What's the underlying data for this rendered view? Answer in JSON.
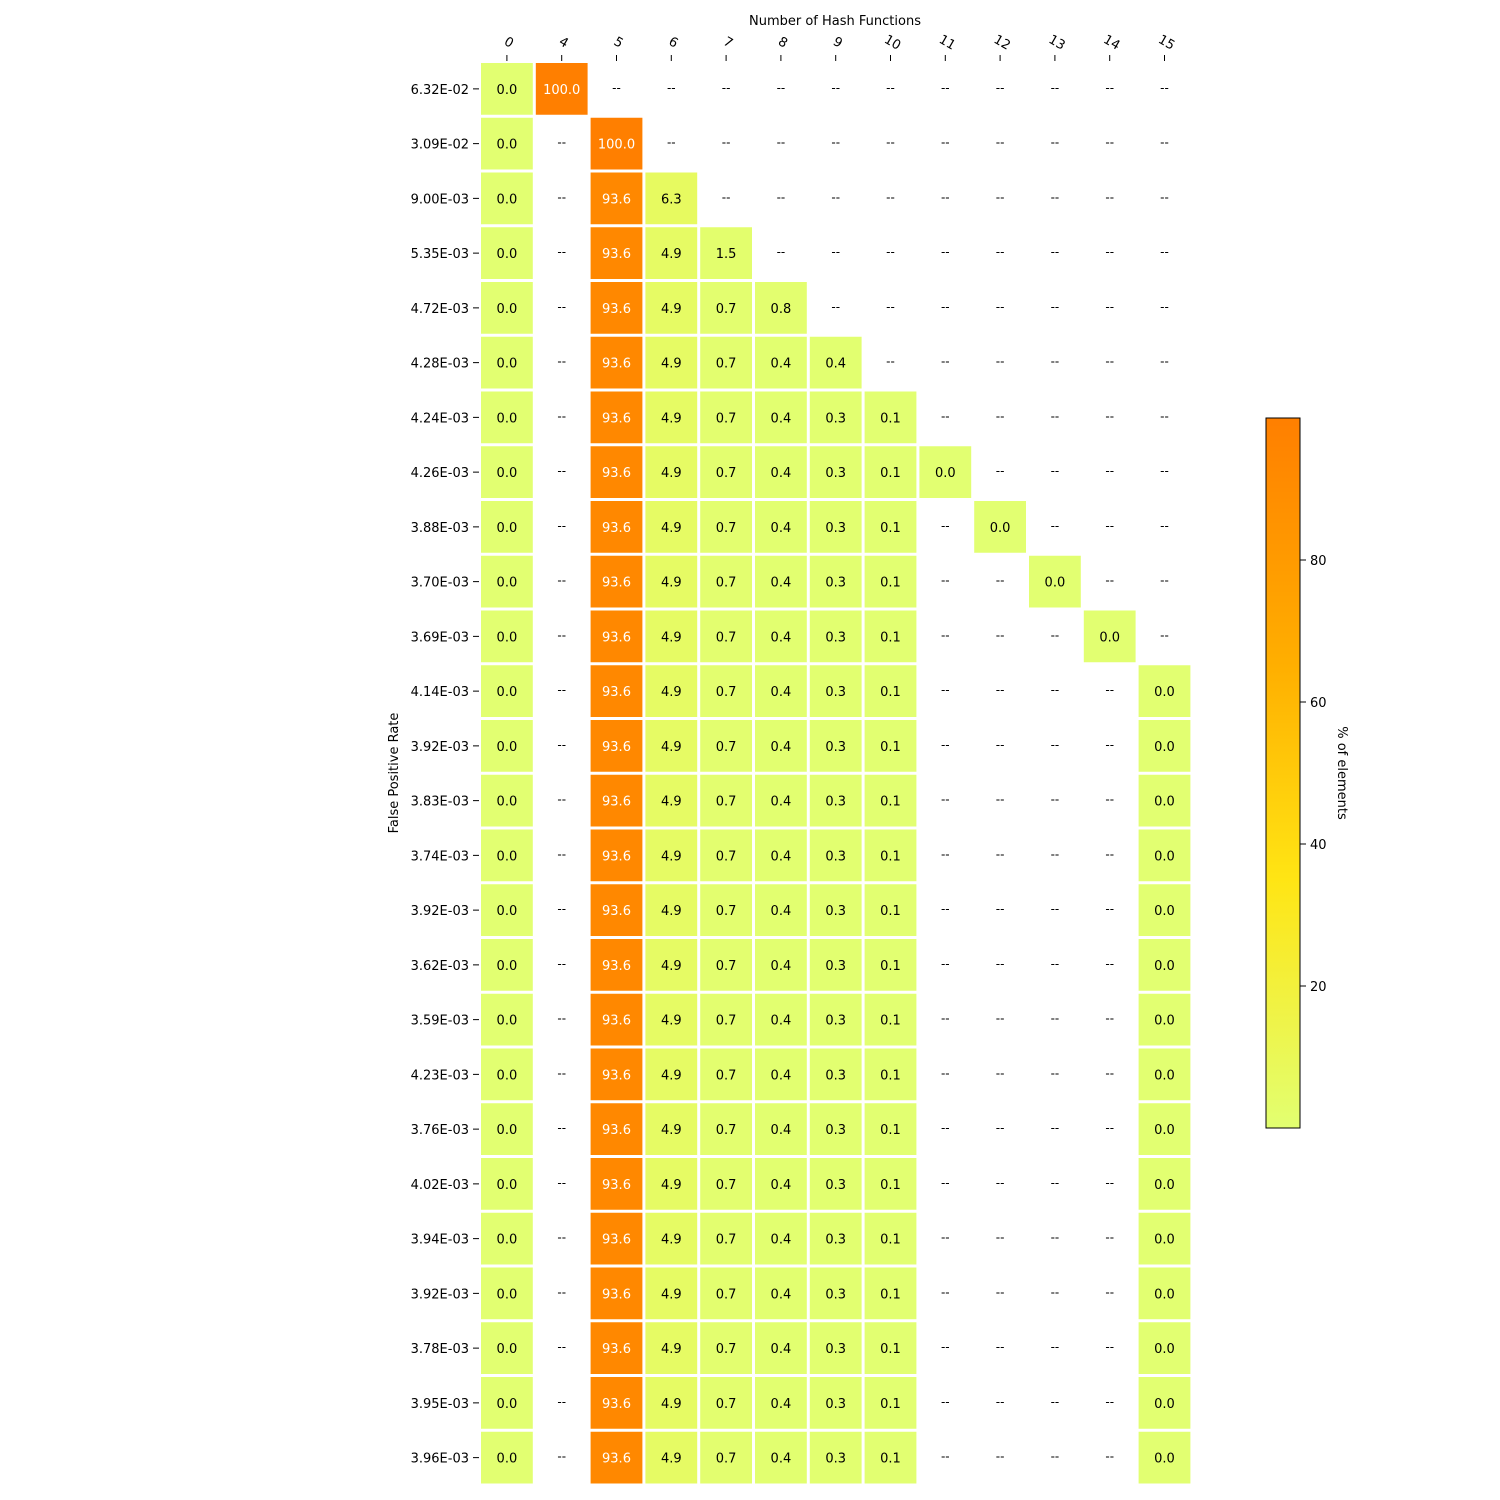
{
  "chart_data": {
    "type": "heatmap",
    "title": "Number of Hash Functions",
    "xlabel": "Number of Hash Functions",
    "ylabel": "False Positive Rate",
    "x_categories": [
      "0",
      "4",
      "5",
      "6",
      "7",
      "8",
      "9",
      "10",
      "11",
      "12",
      "13",
      "14",
      "15"
    ],
    "y_categories": [
      "6.32E-02",
      "3.09E-02",
      "9.00E-03",
      "5.35E-03",
      "4.72E-03",
      "4.28E-03",
      "4.24E-03",
      "4.26E-03",
      "3.88E-03",
      "3.70E-03",
      "3.69E-03",
      "4.14E-03",
      "3.92E-03",
      "3.83E-03",
      "3.74E-03",
      "3.92E-03",
      "3.62E-03",
      "3.59E-03",
      "4.23E-03",
      "3.76E-03",
      "4.02E-03",
      "3.94E-03",
      "3.92E-03",
      "3.78E-03",
      "3.95E-03",
      "3.96E-03"
    ],
    "values": [
      [
        0.0,
        100.0,
        null,
        null,
        null,
        null,
        null,
        null,
        null,
        null,
        null,
        null,
        null
      ],
      [
        0.0,
        null,
        100.0,
        null,
        null,
        null,
        null,
        null,
        null,
        null,
        null,
        null,
        null
      ],
      [
        0.0,
        null,
        93.6,
        6.3,
        null,
        null,
        null,
        null,
        null,
        null,
        null,
        null,
        null
      ],
      [
        0.0,
        null,
        93.6,
        4.9,
        1.5,
        null,
        null,
        null,
        null,
        null,
        null,
        null,
        null
      ],
      [
        0.0,
        null,
        93.6,
        4.9,
        0.7,
        0.8,
        null,
        null,
        null,
        null,
        null,
        null,
        null
      ],
      [
        0.0,
        null,
        93.6,
        4.9,
        0.7,
        0.4,
        0.4,
        null,
        null,
        null,
        null,
        null,
        null
      ],
      [
        0.0,
        null,
        93.6,
        4.9,
        0.7,
        0.4,
        0.3,
        0.1,
        null,
        null,
        null,
        null,
        null
      ],
      [
        0.0,
        null,
        93.6,
        4.9,
        0.7,
        0.4,
        0.3,
        0.1,
        0.0,
        null,
        null,
        null,
        null
      ],
      [
        0.0,
        null,
        93.6,
        4.9,
        0.7,
        0.4,
        0.3,
        0.1,
        null,
        0.0,
        null,
        null,
        null
      ],
      [
        0.0,
        null,
        93.6,
        4.9,
        0.7,
        0.4,
        0.3,
        0.1,
        null,
        null,
        0.0,
        null,
        null
      ],
      [
        0.0,
        null,
        93.6,
        4.9,
        0.7,
        0.4,
        0.3,
        0.1,
        null,
        null,
        null,
        0.0,
        null
      ],
      [
        0.0,
        null,
        93.6,
        4.9,
        0.7,
        0.4,
        0.3,
        0.1,
        null,
        null,
        null,
        null,
        0.0
      ],
      [
        0.0,
        null,
        93.6,
        4.9,
        0.7,
        0.4,
        0.3,
        0.1,
        null,
        null,
        null,
        null,
        0.0
      ],
      [
        0.0,
        null,
        93.6,
        4.9,
        0.7,
        0.4,
        0.3,
        0.1,
        null,
        null,
        null,
        null,
        0.0
      ],
      [
        0.0,
        null,
        93.6,
        4.9,
        0.7,
        0.4,
        0.3,
        0.1,
        null,
        null,
        null,
        null,
        0.0
      ],
      [
        0.0,
        null,
        93.6,
        4.9,
        0.7,
        0.4,
        0.3,
        0.1,
        null,
        null,
        null,
        null,
        0.0
      ],
      [
        0.0,
        null,
        93.6,
        4.9,
        0.7,
        0.4,
        0.3,
        0.1,
        null,
        null,
        null,
        null,
        0.0
      ],
      [
        0.0,
        null,
        93.6,
        4.9,
        0.7,
        0.4,
        0.3,
        0.1,
        null,
        null,
        null,
        null,
        0.0
      ],
      [
        0.0,
        null,
        93.6,
        4.9,
        0.7,
        0.4,
        0.3,
        0.1,
        null,
        null,
        null,
        null,
        0.0
      ],
      [
        0.0,
        null,
        93.6,
        4.9,
        0.7,
        0.4,
        0.3,
        0.1,
        null,
        null,
        null,
        null,
        0.0
      ],
      [
        0.0,
        null,
        93.6,
        4.9,
        0.7,
        0.4,
        0.3,
        0.1,
        null,
        null,
        null,
        null,
        0.0
      ],
      [
        0.0,
        null,
        93.6,
        4.9,
        0.7,
        0.4,
        0.3,
        0.1,
        null,
        null,
        null,
        null,
        0.0
      ],
      [
        0.0,
        null,
        93.6,
        4.9,
        0.7,
        0.4,
        0.3,
        0.1,
        null,
        null,
        null,
        null,
        0.0
      ],
      [
        0.0,
        null,
        93.6,
        4.9,
        0.7,
        0.4,
        0.3,
        0.1,
        null,
        null,
        null,
        null,
        0.0
      ],
      [
        0.0,
        null,
        93.6,
        4.9,
        0.7,
        0.4,
        0.3,
        0.1,
        null,
        null,
        null,
        null,
        0.0
      ],
      [
        0.0,
        null,
        93.6,
        4.9,
        0.7,
        0.4,
        0.3,
        0.1,
        null,
        null,
        null,
        null,
        0.0
      ]
    ],
    "missing_label": "--",
    "colorbar": {
      "label": "% of elements",
      "range": [
        0,
        100
      ],
      "ticks": [
        20,
        40,
        60,
        80
      ],
      "colors": [
        "#e2ff71",
        "#ffe514",
        "#ffaf00",
        "#ff7f00"
      ]
    },
    "legend_position": "right"
  }
}
